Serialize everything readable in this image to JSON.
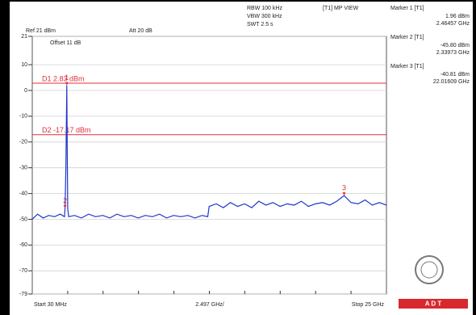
{
  "chart_data": {
    "type": "line",
    "header": {
      "ref": "Ref 21 dBm",
      "att": "Att 20 dB",
      "rbw": "RBW 100 kHz",
      "vbw": "VBW 300 kHz",
      "swt": "SWT 2.5 s",
      "view": "[T1] MP VIEW",
      "offset": "Offset 11 dB"
    },
    "x_labels": {
      "start": "Start 30 MHz",
      "span": "2.497 GHz/",
      "stop": "Stop 25 GHz"
    },
    "xlim": [
      0.03,
      25
    ],
    "ylim": [
      -79,
      21
    ],
    "yticks": [
      21,
      10,
      0,
      -10,
      -20,
      -30,
      -40,
      -50,
      -60,
      -70,
      -79
    ],
    "grid": true,
    "x": [
      0.03,
      0.4,
      0.8,
      1.2,
      1.6,
      2.0,
      2.3,
      2.33973,
      2.4,
      2.44,
      2.46457,
      2.49,
      2.53,
      2.6,
      3.0,
      3.5,
      4.0,
      4.5,
      5,
      5.5,
      6,
      6.5,
      7,
      7.5,
      8,
      8.5,
      9,
      9.5,
      10,
      10.5,
      11,
      11.5,
      12,
      12.4,
      12.5,
      13,
      13.5,
      14,
      14.5,
      15,
      15.5,
      16,
      16.5,
      17,
      17.5,
      18,
      18.5,
      19,
      19.5,
      20,
      20.5,
      21,
      21.5,
      22.01609,
      22.5,
      23,
      23.5,
      24,
      24.5,
      25
    ],
    "series": [
      {
        "name": "T1",
        "color": "#1f35c8",
        "values": [
          -50,
          -48,
          -49.5,
          -48.5,
          -49,
          -48,
          -49,
          -45.8,
          -30,
          -10,
          1.96,
          -20,
          -46,
          -49,
          -48.5,
          -49.5,
          -48,
          -49,
          -48.5,
          -49.5,
          -48,
          -49,
          -48.5,
          -49.5,
          -48.5,
          -49,
          -48,
          -49.5,
          -48.5,
          -49,
          -48.5,
          -49.5,
          -48.5,
          -49,
          -45,
          -44,
          -45.5,
          -43.5,
          -45,
          -44,
          -45.5,
          -43,
          -44.5,
          -43.5,
          -45,
          -44,
          -44.5,
          -43,
          -45,
          -44,
          -43.5,
          -44.5,
          -43,
          -40.81,
          -43.5,
          -44,
          -42.5,
          -44.5,
          -43.5,
          -44.5
        ]
      }
    ],
    "display_lines": [
      {
        "label": "D1 2.83 dBm",
        "value": 2.83,
        "color": "#e0303a"
      },
      {
        "label": "D2 -17.17 dBm",
        "value": -17.17,
        "color": "#e0303a"
      }
    ],
    "markers": [
      {
        "label": "1",
        "title": "Marker 1 [T1]",
        "level": "1.96 dBm",
        "freq": "2.46457 GHz",
        "x": 2.46457,
        "y": 1.96
      },
      {
        "label": "2",
        "title": "Marker 2 [T1]",
        "level": "-45.80 dBm",
        "freq": "2.33973 GHz",
        "x": 2.33973,
        "y": -45.8
      },
      {
        "label": "3",
        "title": "Marker 3 [T1]",
        "level": "-40.81 dBm",
        "freq": "22.01609 GHz",
        "x": 22.01609,
        "y": -40.81
      }
    ],
    "logo": "A D T"
  }
}
